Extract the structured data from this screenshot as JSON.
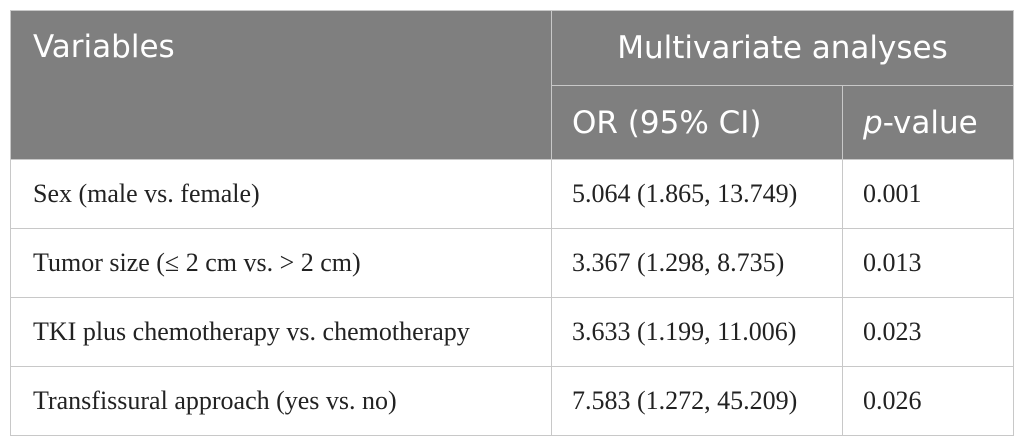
{
  "header": {
    "variables": "Variables",
    "group": "Multivariate analyses",
    "or_ci": "OR (95% CI)",
    "p_prefix": "p",
    "p_suffix": "-value"
  },
  "rows": [
    {
      "variable": "Sex (male vs. female)",
      "or_ci": "5.064 (1.865, 13.749)",
      "p": "0.001"
    },
    {
      "variable": "Tumor size (≤ 2 cm vs. > 2 cm)",
      "or_ci": "3.367 (1.298, 8.735)",
      "p": "0.013"
    },
    {
      "variable": "TKI plus chemotherapy vs. chemotherapy",
      "or_ci": "3.633 (1.199, 11.006)",
      "p": "0.023"
    },
    {
      "variable": "Transfissural approach (yes vs. no)",
      "or_ci": "7.583 (1.272, 45.209)",
      "p": "0.026"
    }
  ]
}
